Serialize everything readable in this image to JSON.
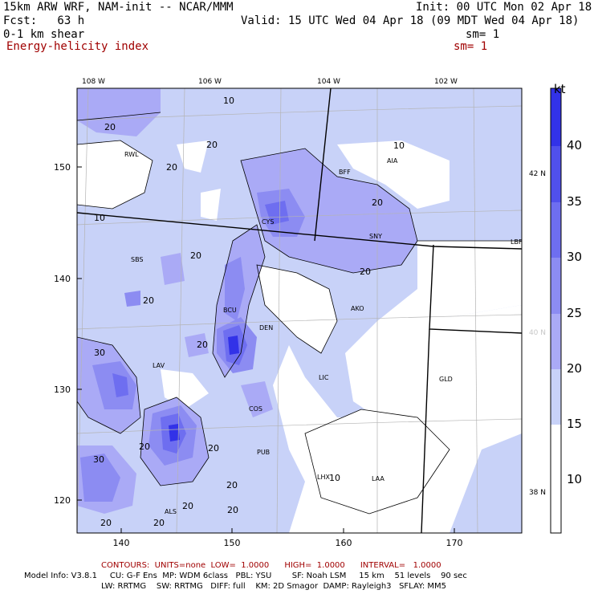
{
  "header": {
    "model_line": "15km ARW WRF, NAM-init -- NCAR/MMM",
    "init_line": "Init: 00 UTC Mon 02 Apr 18",
    "fcst_line": "Fcst:   63 h",
    "valid_line": "Valid: 15 UTC Wed 04 Apr 18 (09 MDT Wed 04 Apr 18)",
    "field1": "0-1 km shear",
    "field1_sm": "sm= 1",
    "field2": "Energy-helicity index",
    "field2_sm": "sm= 1"
  },
  "top_lon_labels": [
    "108 W",
    "106 W",
    "104 W",
    "102 W"
  ],
  "left_y_labels": [
    "150",
    "140",
    "130",
    "120"
  ],
  "bottom_x_labels": [
    "140",
    "150",
    "160",
    "170"
  ],
  "right_lat_labels": [
    "42 N",
    "40 N",
    "38 N"
  ],
  "colorbar": {
    "unit": "kt",
    "ticks": [
      "40",
      "35",
      "30",
      "25",
      "20",
      "15",
      "10"
    ],
    "colors": [
      "#3232e8",
      "#5050ec",
      "#6e6ef0",
      "#8c8cf2",
      "#aaaaf6",
      "#c8d2f8",
      "#ffffff"
    ]
  },
  "stations": [
    "RWL",
    "BFF",
    "AIA",
    "CYS",
    "SNY",
    "SBS",
    "BCU",
    "DEN",
    "AKO",
    "LAV",
    "LIC",
    "GLD",
    "COS",
    "PUB",
    "LHX",
    "LAA",
    "ALS",
    "LBF"
  ],
  "contour_labels": [
    "10",
    "20",
    "30"
  ],
  "colors": {
    "fill_light": "#c8d2f8",
    "fill_mid": "#aaaaf6",
    "fill_dark": "#8c8cf2",
    "fill_darker": "#6e6ef0",
    "fill_darkest": "#3232e8",
    "text_red": "#a00000"
  },
  "footer": {
    "contours": "CONTOURS:  UNITS=none  LOW=  1.0000      HIGH=  1.0000      INTERVAL=   1.0000",
    "model_info": "Model Info: V3.8.1     CU: G-F Ens  MP: WDM 6class   PBL: YSU        SF: Noah LSM     15 km    51 levels    90 sec",
    "model_info2": "LW: RRTMG    SW: RRTMG   DIFF: full    KM: 2D Smagor  DAMP: Rayleigh3   SFLAY: MM5"
  }
}
